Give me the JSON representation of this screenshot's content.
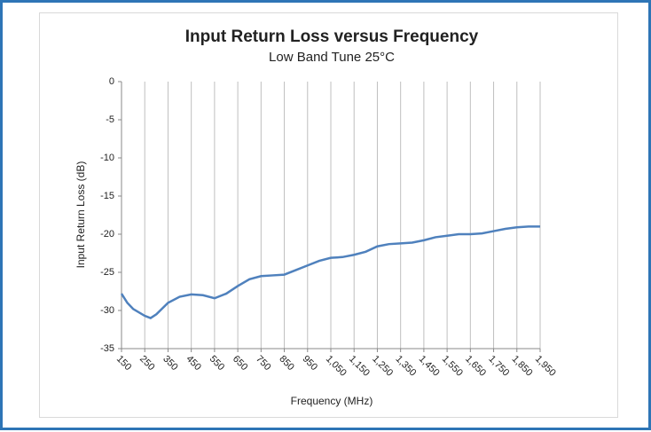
{
  "chart_data": {
    "type": "line",
    "title": "Input Return Loss versus Frequency",
    "subtitle": "Low Band Tune 25°C",
    "x_label": "Frequency (MHz)",
    "y_label": "Input Return Loss (dB)",
    "x": [
      150,
      175,
      200,
      250,
      275,
      300,
      350,
      400,
      450,
      500,
      550,
      600,
      650,
      700,
      750,
      800,
      850,
      900,
      950,
      1000,
      1050,
      1100,
      1150,
      1200,
      1250,
      1300,
      1350,
      1400,
      1450,
      1500,
      1550,
      1600,
      1650,
      1700,
      1750,
      1800,
      1850,
      1900,
      1950
    ],
    "series": [
      {
        "name": "Input Return Loss",
        "color": "#4f81bd",
        "values": [
          -27.8,
          -29,
          -29.8,
          -30.7,
          -31,
          -30.5,
          -29,
          -28.2,
          -27.9,
          -28,
          -28.4,
          -27.8,
          -26.8,
          -25.9,
          -25.5,
          -25.4,
          -25.3,
          -24.7,
          -24.1,
          -23.5,
          -23.1,
          -23,
          -22.7,
          -22.3,
          -21.6,
          -21.3,
          -21.2,
          -21.1,
          -20.8,
          -20.4,
          -20.2,
          -20,
          -20,
          -19.9,
          -19.6,
          -19.3,
          -19.1,
          -19,
          -19
        ]
      }
    ],
    "xlim": [
      150,
      1950
    ],
    "xticks": [
      150,
      250,
      350,
      450,
      550,
      650,
      750,
      850,
      950,
      {
        "value": 1050,
        "label": "1,050"
      },
      {
        "value": 1150,
        "label": "1,150"
      },
      {
        "value": 1250,
        "label": "1,250"
      },
      {
        "value": 1350,
        "label": "1,350"
      },
      {
        "value": 1450,
        "label": "1,450"
      },
      {
        "value": 1550,
        "label": "1,550"
      },
      {
        "value": 1650,
        "label": "1,650"
      },
      {
        "value": 1750,
        "label": "1,750"
      },
      {
        "value": 1850,
        "label": "1,850"
      },
      {
        "value": 1950,
        "label": "1,950"
      }
    ],
    "ylim": [
      -35,
      0
    ],
    "yticks": [
      0,
      -5,
      -10,
      -15,
      -20,
      -25,
      -30,
      -35
    ],
    "grid": "x"
  }
}
